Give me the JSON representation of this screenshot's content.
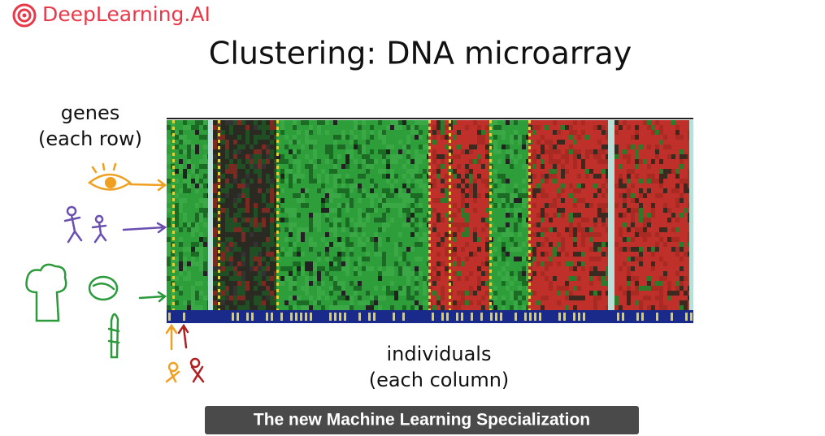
{
  "logo": "DeepLearning.AI",
  "title": "Clustering: DNA microarray",
  "labels": {
    "genes": "genes",
    "genes_note": "(each row)",
    "individuals": "individuals",
    "individuals_note": "(each column)"
  },
  "caption": "The new Machine Learning Specialization"
}
